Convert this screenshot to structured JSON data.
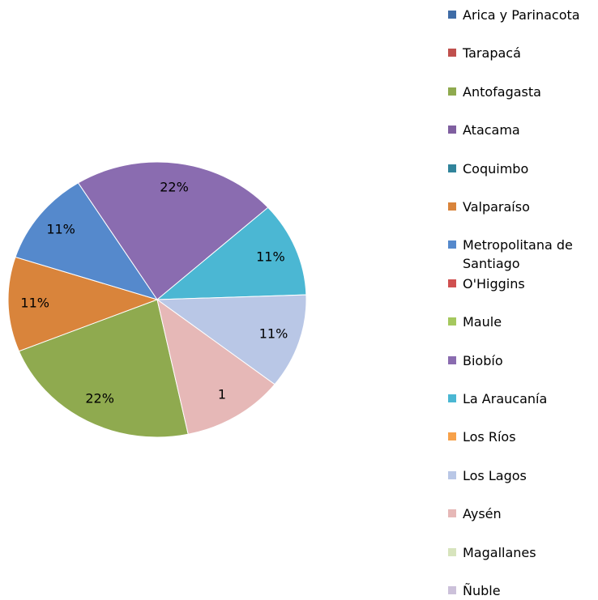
{
  "chart_data": {
    "type": "pie",
    "categories": [
      "Arica y Parinacota",
      "Tarapacá",
      "Antofagasta",
      "Atacama",
      "Coquimbo",
      "Valparaíso",
      "Metropolitana de Santiago",
      "O'Higgins",
      "Maule",
      "Biobío",
      "La Araucanía",
      "Los Ríos",
      "Los Lagos",
      "Aysén",
      "Magallanes",
      "Ñuble"
    ],
    "values": [
      0,
      0,
      2,
      0,
      0,
      1,
      1,
      0,
      0,
      2,
      1,
      0,
      1,
      1,
      0,
      0
    ],
    "value_labels": [
      null,
      null,
      "22%",
      null,
      null,
      "11%",
      "11%",
      null,
      null,
      "22%",
      "11%",
      null,
      "11%",
      "1",
      null,
      null
    ],
    "colors": [
      "#3f6ca6",
      "#c0504d",
      "#8faa4f",
      "#7f5fa0",
      "#31849b",
      "#d9843b",
      "#5589cc",
      "#d05050",
      "#a5c85e",
      "#8a6cb0",
      "#4bb7d3",
      "#f7a14a",
      "#b9c7e6",
      "#e6b8b7",
      "#d7e4bd",
      "#ccc1da"
    ],
    "legend": "right"
  }
}
